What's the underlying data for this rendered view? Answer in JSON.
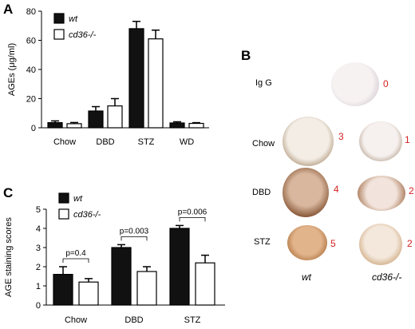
{
  "panels": {
    "a": "A",
    "b": "B",
    "c": "C"
  },
  "colors": {
    "wt": "#111111",
    "cd36": "#ffffff",
    "score": "#d41f1f"
  },
  "chart_data": [
    {
      "id": "A",
      "type": "bar",
      "ylabel": "AGEs (μg/ml)",
      "categories": [
        "Chow",
        "DBD",
        "STZ",
        "WD"
      ],
      "series": [
        {
          "name": "wt",
          "values": [
            3.5,
            11.5,
            68,
            3.3
          ],
          "errors": [
            1.2,
            3,
            5,
            0.8
          ],
          "color": "#111111"
        },
        {
          "name": "cd36-/-",
          "values": [
            2.8,
            15,
            61,
            3.0
          ],
          "errors": [
            0.8,
            5,
            6,
            0.5
          ],
          "color": "#ffffff"
        }
      ],
      "ylim": [
        0,
        80
      ],
      "yticks": [
        0,
        20,
        40,
        60,
        80
      ],
      "legend": "top-left"
    },
    {
      "id": "C",
      "type": "bar",
      "ylabel": "AGE staining scores",
      "categories": [
        "Chow",
        "DBD",
        "STZ"
      ],
      "series": [
        {
          "name": "wt",
          "values": [
            1.6,
            3.0,
            4.0
          ],
          "errors": [
            0.4,
            0.15,
            0.15
          ],
          "color": "#111111"
        },
        {
          "name": "cd36-/-",
          "values": [
            1.2,
            1.75,
            2.2
          ],
          "errors": [
            0.18,
            0.25,
            0.4
          ],
          "color": "#ffffff"
        }
      ],
      "ylim": [
        0,
        5
      ],
      "yticks": [
        0,
        1,
        2,
        3,
        4,
        5
      ],
      "legend": "top-left",
      "annotations": [
        "p=0.4",
        "p=0.003",
        "p=0.006"
      ]
    }
  ],
  "panel_b": {
    "rows": [
      {
        "label": "Ig G",
        "wt_score": "",
        "cd36_score": "0"
      },
      {
        "label": "Chow",
        "wt_score": "3",
        "cd36_score": "1"
      },
      {
        "label": "DBD",
        "wt_score": "4",
        "cd36_score": "2"
      },
      {
        "label": "STZ",
        "wt_score": "5",
        "cd36_score": "2"
      }
    ],
    "columns": [
      "wt",
      "cd36-/-"
    ]
  }
}
